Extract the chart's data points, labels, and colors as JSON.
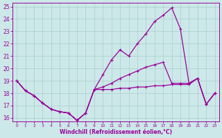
{
  "xlabel": "Windchill (Refroidissement éolien,°C)",
  "x_hours": [
    0,
    1,
    2,
    3,
    4,
    5,
    6,
    7,
    8,
    9,
    10,
    11,
    12,
    13,
    14,
    15,
    16,
    17,
    18,
    19,
    20,
    21,
    22,
    23
  ],
  "line_upper": [
    19.0,
    18.2,
    17.8,
    17.2,
    16.7,
    16.5,
    16.4,
    15.8,
    16.4,
    18.3,
    19.5,
    20.7,
    21.5,
    21.0,
    22.0,
    22.8,
    23.8,
    24.3,
    24.9,
    23.2,
    18.8,
    19.2,
    17.1,
    18.0
  ],
  "line_mid": [
    19.0,
    18.2,
    17.8,
    17.2,
    16.7,
    16.5,
    16.4,
    15.8,
    16.4,
    18.3,
    18.5,
    18.8,
    19.2,
    19.5,
    19.8,
    20.1,
    20.3,
    20.5,
    18.8,
    18.8,
    18.8,
    19.2,
    17.1,
    18.0
  ],
  "line_lower": [
    19.0,
    18.2,
    17.8,
    17.2,
    16.7,
    16.5,
    16.4,
    15.8,
    16.4,
    18.3,
    18.3,
    18.3,
    18.4,
    18.4,
    18.5,
    18.5,
    18.6,
    18.6,
    18.7,
    18.7,
    18.7,
    19.2,
    17.1,
    18.0
  ],
  "ylim_min": 15.7,
  "ylim_max": 25.3,
  "yticks": [
    16,
    17,
    18,
    19,
    20,
    21,
    22,
    23,
    24,
    25
  ],
  "xticks": [
    0,
    1,
    2,
    3,
    4,
    5,
    6,
    7,
    8,
    9,
    10,
    11,
    12,
    13,
    14,
    15,
    16,
    17,
    18,
    19,
    20,
    21,
    22,
    23
  ],
  "line_color": "#990099",
  "bg_color": "#cce8e8",
  "grid_color": "#aacece"
}
